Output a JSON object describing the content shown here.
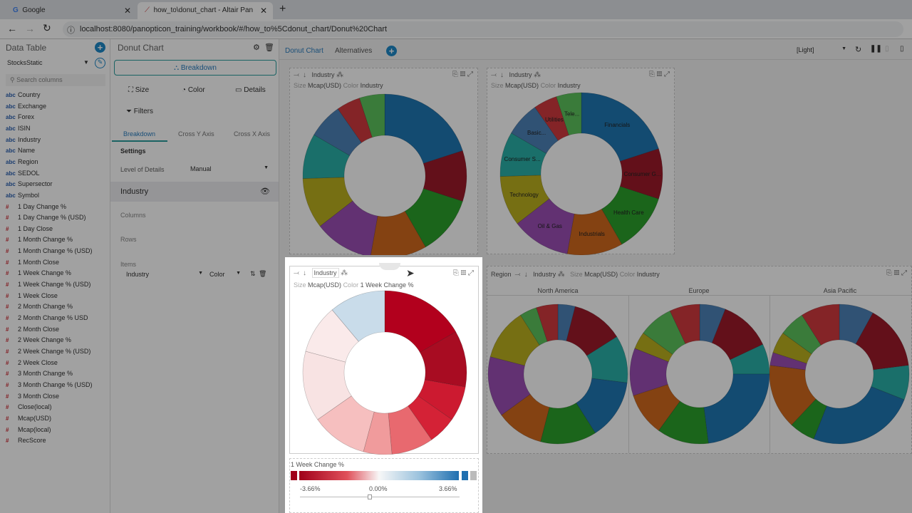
{
  "browser": {
    "tabs": [
      {
        "label": "Google"
      },
      {
        "label": "how_to\\donut_chart - Altair Pan"
      }
    ],
    "url": "localhost:8080/panopticon_training/workbook/#/how_to%5Cdonut_chart/Donut%20Chart"
  },
  "sidebar": {
    "title": "Data Table",
    "source": "StocksStatic",
    "search_placeholder": "Search columns",
    "columns": [
      {
        "type": "abc",
        "name": "Country"
      },
      {
        "type": "abc",
        "name": "Exchange"
      },
      {
        "type": "abc",
        "name": "Forex"
      },
      {
        "type": "abc",
        "name": "ISIN"
      },
      {
        "type": "abc",
        "name": "Industry"
      },
      {
        "type": "abc",
        "name": "Name"
      },
      {
        "type": "abc",
        "name": "Region"
      },
      {
        "type": "abc",
        "name": "SEDOL"
      },
      {
        "type": "abc",
        "name": "Supersector"
      },
      {
        "type": "abc",
        "name": "Symbol"
      },
      {
        "type": "#",
        "name": "1 Day Change %"
      },
      {
        "type": "#",
        "name": "1 Day Change % (USD)"
      },
      {
        "type": "#",
        "name": "1 Day Close"
      },
      {
        "type": "#",
        "name": "1 Month Change %"
      },
      {
        "type": "#",
        "name": "1 Month Change % (USD)"
      },
      {
        "type": "#",
        "name": "1 Month Close"
      },
      {
        "type": "#",
        "name": "1 Week Change %"
      },
      {
        "type": "#",
        "name": "1 Week Change % (USD)"
      },
      {
        "type": "#",
        "name": "1 Week Close"
      },
      {
        "type": "#",
        "name": "2 Month Change %"
      },
      {
        "type": "#",
        "name": "2 Month Change % USD"
      },
      {
        "type": "#",
        "name": "2 Month Close"
      },
      {
        "type": "#",
        "name": "2 Week Change %"
      },
      {
        "type": "#",
        "name": "2 Week Change % (USD)"
      },
      {
        "type": "#",
        "name": "2 Week Close"
      },
      {
        "type": "#",
        "name": "3 Month Change %"
      },
      {
        "type": "#",
        "name": "3 Month Change % (USD)"
      },
      {
        "type": "#",
        "name": "3 Month Close"
      },
      {
        "type": "#",
        "name": "Close(local)"
      },
      {
        "type": "#",
        "name": "Mcap(USD)"
      },
      {
        "type": "#",
        "name": "Mcap(local)"
      },
      {
        "type": "#",
        "name": "RecScore"
      }
    ]
  },
  "config": {
    "title": "Donut Chart",
    "breakdown_btn": "Breakdown",
    "size": "Size",
    "color": "Color",
    "details": "Details",
    "filters": "Filters",
    "tabs": [
      "Breakdown",
      "Cross Y Axis",
      "Cross X Axis"
    ],
    "settings": "Settings",
    "lod_label": "Level of Details",
    "lod_value": "Manual",
    "section": "Industry",
    "columns": "Columns",
    "rows": "Rows",
    "items": "Items",
    "item_value": "Industry",
    "item_role": "Color"
  },
  "canvas": {
    "tabs": [
      "Donut Chart",
      "Alternatives"
    ],
    "theme": "[Light]"
  },
  "panels": {
    "p1": {
      "breakdown": "Industry",
      "size_label": "Size",
      "size": "Mcap(USD)",
      "color_label": "Color",
      "color": "Industry"
    },
    "p2": {
      "breakdown": "Industry",
      "size_label": "Size",
      "size": "Mcap(USD)",
      "color_label": "Color",
      "color": "Industry"
    },
    "p3": {
      "breakdown": "Industry",
      "size_label": "Size",
      "size": "Mcap(USD)",
      "color_label": "Color",
      "color": "1 Week Change %"
    },
    "p4": {
      "region": "Region",
      "breakdown": "Industry",
      "size_label": "Size",
      "size": "Mcap(USD)",
      "color_label": "Color",
      "color": "Industry",
      "regions": [
        "North America",
        "Europe",
        "Asia Pacific"
      ]
    }
  },
  "legend": {
    "title": "1 Week Change %",
    "min": "-3.66%",
    "mid": "0.00%",
    "max": "3.66%",
    "colors": {
      "neg": "#b2001d",
      "mid": "#f7f7f7",
      "pos": "#1f6fb0",
      "null": "#bbbbbb"
    }
  },
  "chart_data": [
    {
      "type": "pie",
      "id": "industry",
      "show_labels": false,
      "slices": [
        {
          "label": "Financials",
          "value": 20,
          "color": "#1f77b4"
        },
        {
          "label": "Consumer G",
          "value": 10,
          "color": "#9e1a2a"
        },
        {
          "label": "Health Care",
          "value": 11.7,
          "color": "#2ca02c"
        },
        {
          "label": "Industrials",
          "value": 11.1,
          "color": "#d2691e"
        },
        {
          "label": "Oil & Gas",
          "value": 11.7,
          "color": "#9b4fb5"
        },
        {
          "label": "Technology",
          "value": 10,
          "color": "#bcb01f"
        },
        {
          "label": "Consumer S",
          "value": 8.9,
          "color": "#2ab0a8"
        },
        {
          "label": "Basic",
          "value": 6.9,
          "color": "#4d82b8"
        },
        {
          "label": "Utilities",
          "value": 4.7,
          "color": "#d23a3e"
        },
        {
          "label": "Telecom",
          "value": 5,
          "color": "#5cc35c"
        }
      ]
    },
    {
      "type": "pie",
      "id": "industry-labeled",
      "show_labels": true,
      "slices": [
        {
          "label": "Financials",
          "value": 20,
          "color": "#1f77b4"
        },
        {
          "label": "Consumer G...",
          "value": 10,
          "color": "#9e1a2a"
        },
        {
          "label": "Health Care",
          "value": 11.7,
          "color": "#2ca02c"
        },
        {
          "label": "Industrials",
          "value": 11.1,
          "color": "#d2691e"
        },
        {
          "label": "Oil & Gas",
          "value": 11.7,
          "color": "#9b4fb5"
        },
        {
          "label": "Technology",
          "value": 10,
          "color": "#bcb01f"
        },
        {
          "label": "Consumer S...",
          "value": 8.9,
          "color": "#2ab0a8"
        },
        {
          "label": "Basic...",
          "value": 6.9,
          "color": "#4d82b8"
        },
        {
          "label": "Utilities",
          "value": 4.7,
          "color": "#d23a3e"
        },
        {
          "label": "Tele...",
          "value": 5,
          "color": "#5cc35c"
        }
      ]
    },
    {
      "type": "pie",
      "id": "week-change",
      "show_labels": false,
      "slices": [
        {
          "value": 16.7,
          "color": "#b2001d"
        },
        {
          "value": 11.1,
          "color": "#a80c22"
        },
        {
          "value": 6.9,
          "color": "#cc1a30"
        },
        {
          "value": 5.6,
          "color": "#d42236"
        },
        {
          "value": 8.3,
          "color": "#e8696f"
        },
        {
          "value": 5.6,
          "color": "#f09b9c"
        },
        {
          "value": 11.1,
          "color": "#f6bfbf"
        },
        {
          "value": 13.9,
          "color": "#f8e3e3"
        },
        {
          "value": 9.7,
          "color": "#faeaea"
        },
        {
          "value": 11.1,
          "color": "#c9dcea"
        }
      ]
    },
    {
      "type": "pie",
      "id": "north-america",
      "show_labels": false,
      "slices": [
        {
          "value": 4,
          "color": "#4d82b8"
        },
        {
          "value": 12,
          "color": "#9e1a2a"
        },
        {
          "value": 11,
          "color": "#2ab0a8"
        },
        {
          "value": 14,
          "color": "#1f77b4"
        },
        {
          "value": 13,
          "color": "#2ca02c"
        },
        {
          "value": 11,
          "color": "#d2691e"
        },
        {
          "value": 14,
          "color": "#9b4fb5"
        },
        {
          "value": 12,
          "color": "#bcb01f"
        },
        {
          "value": 4,
          "color": "#5cc35c"
        },
        {
          "value": 5,
          "color": "#d23a3e"
        }
      ]
    },
    {
      "type": "pie",
      "id": "europe",
      "show_labels": false,
      "slices": [
        {
          "value": 6,
          "color": "#4d82b8"
        },
        {
          "value": 12,
          "color": "#9e1a2a"
        },
        {
          "value": 7,
          "color": "#2ab0a8"
        },
        {
          "value": 23,
          "color": "#1f77b4"
        },
        {
          "value": 12,
          "color": "#2ca02c"
        },
        {
          "value": 10,
          "color": "#d2691e"
        },
        {
          "value": 11,
          "color": "#9b4fb5"
        },
        {
          "value": 4,
          "color": "#bcb01f"
        },
        {
          "value": 8,
          "color": "#5cc35c"
        },
        {
          "value": 7,
          "color": "#d23a3e"
        }
      ]
    },
    {
      "type": "pie",
      "id": "asia-pacific",
      "show_labels": false,
      "slices": [
        {
          "value": 8,
          "color": "#4d82b8"
        },
        {
          "value": 15,
          "color": "#9e1a2a"
        },
        {
          "value": 8,
          "color": "#2ab0a8"
        },
        {
          "value": 25,
          "color": "#1f77b4"
        },
        {
          "value": 6,
          "color": "#2ca02c"
        },
        {
          "value": 15,
          "color": "#d2691e"
        },
        {
          "value": 3,
          "color": "#9b4fb5"
        },
        {
          "value": 5,
          "color": "#bcb01f"
        },
        {
          "value": 6,
          "color": "#5cc35c"
        },
        {
          "value": 9,
          "color": "#d23a3e"
        }
      ]
    }
  ]
}
